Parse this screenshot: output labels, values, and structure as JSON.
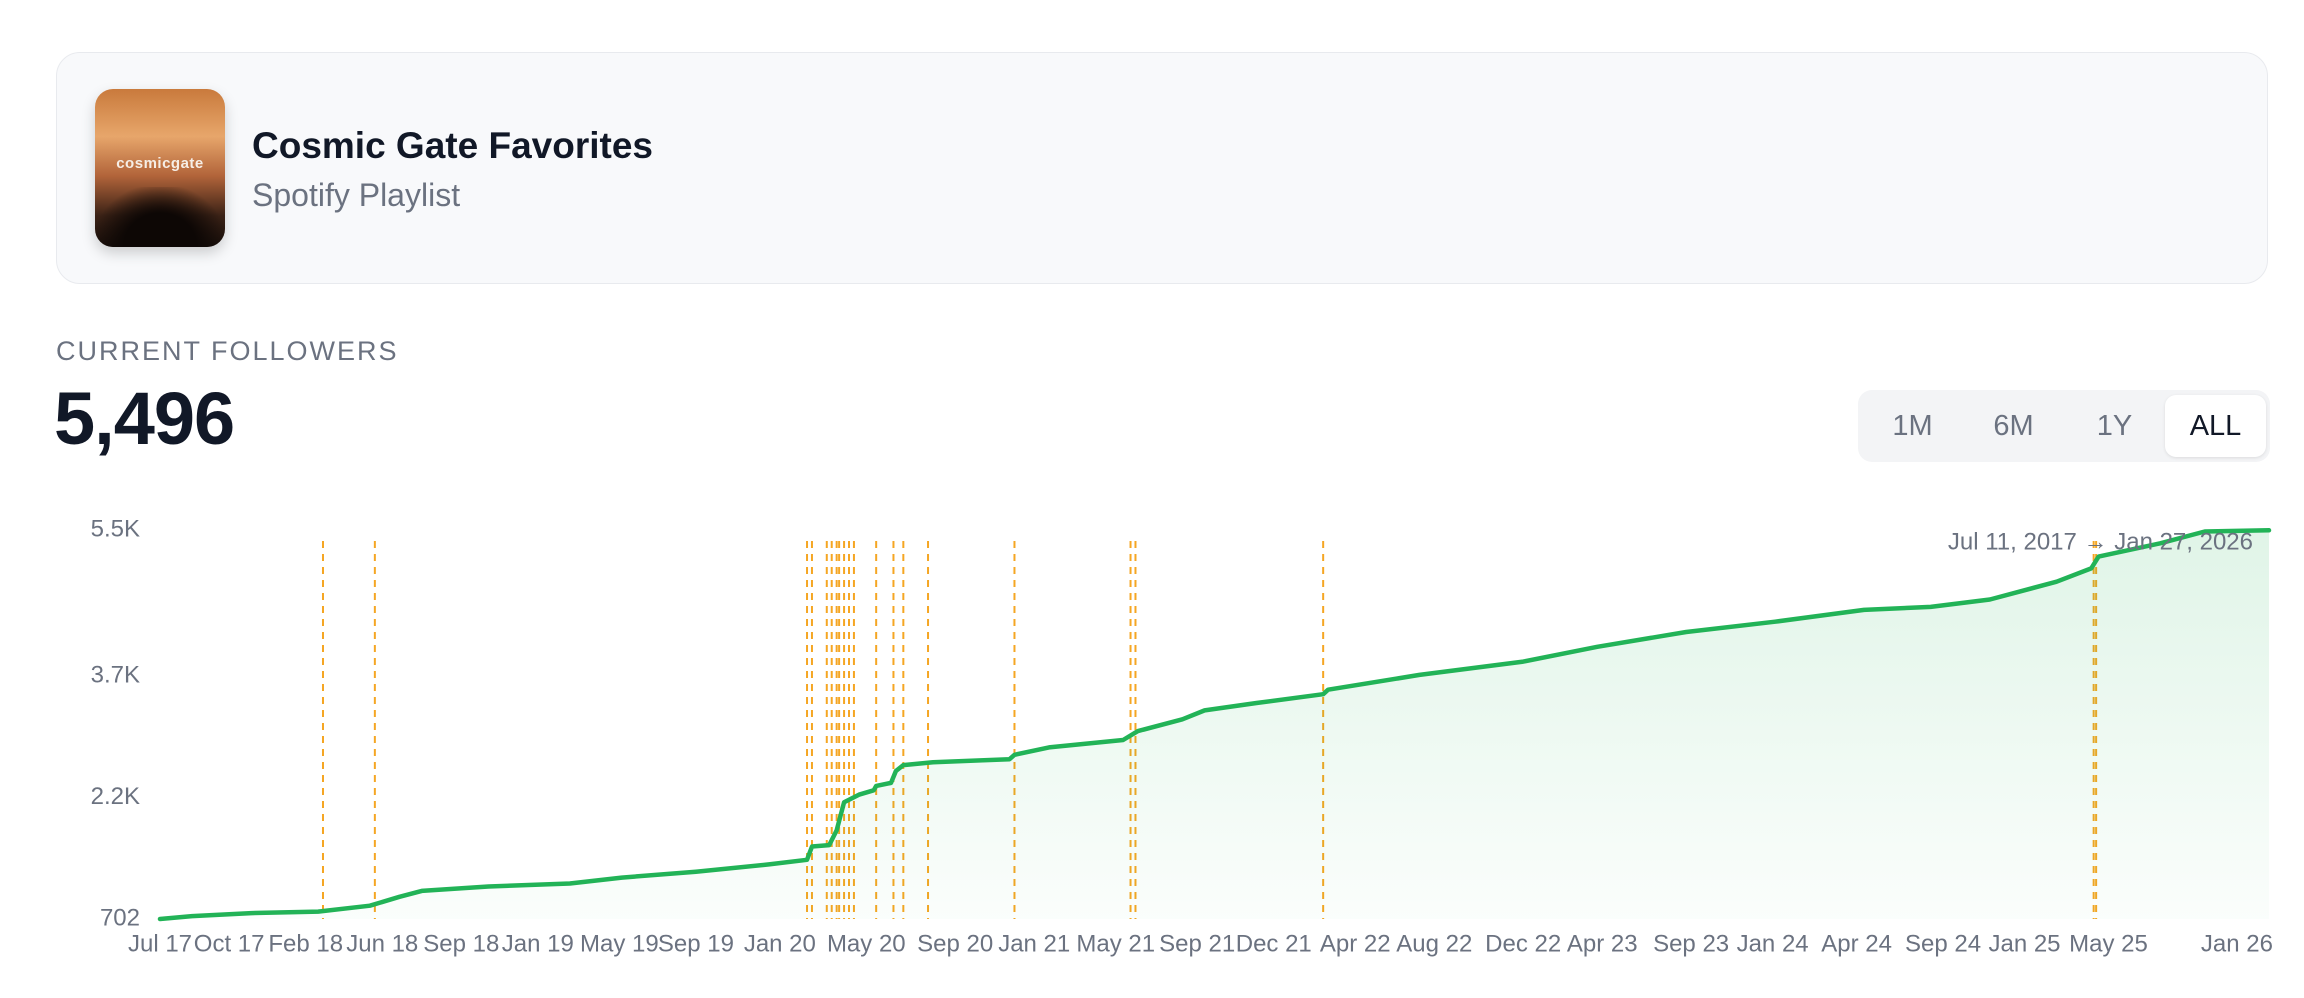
{
  "header": {
    "title": "Cosmic Gate Favorites",
    "subtitle": "Spotify Playlist",
    "cover_text": "cosmicgate"
  },
  "stats": {
    "label": "CURRENT FOLLOWERS",
    "value": "5,496"
  },
  "range_buttons": [
    "1M",
    "6M",
    "1Y",
    "ALL"
  ],
  "active_range": "ALL",
  "chart_data": {
    "type": "line",
    "annotation": "Jul 11, 2017 → Jan 27, 2026",
    "xlim": [
      2017.53,
      2026.07
    ],
    "ylim": [
      702,
      5500
    ],
    "yticks": [
      702,
      {
        "value": 2200,
        "label": "2.2K"
      },
      {
        "value": 3700,
        "label": "3.7K"
      },
      {
        "value": 5500,
        "label": "5.5K"
      }
    ],
    "xticks": [
      {
        "value": 2017.53,
        "label": "Jul 17"
      },
      {
        "value": 2017.81,
        "label": "Oct 17"
      },
      {
        "value": 2018.12,
        "label": "Feb 18"
      },
      {
        "value": 2018.43,
        "label": "Jun 18"
      },
      {
        "value": 2018.75,
        "label": "Sep 18"
      },
      {
        "value": 2019.06,
        "label": "Jan 19"
      },
      {
        "value": 2019.39,
        "label": "May 19"
      },
      {
        "value": 2019.7,
        "label": "Sep 19"
      },
      {
        "value": 2020.04,
        "label": "Jan 20"
      },
      {
        "value": 2020.39,
        "label": "May 20"
      },
      {
        "value": 2020.75,
        "label": "Sep 20"
      },
      {
        "value": 2021.07,
        "label": "Jan 21"
      },
      {
        "value": 2021.4,
        "label": "May 21"
      },
      {
        "value": 2021.73,
        "label": "Sep 21"
      },
      {
        "value": 2022.04,
        "label": "Dec 21"
      },
      {
        "value": 2022.37,
        "label": "Apr 22"
      },
      {
        "value": 2022.69,
        "label": "Aug 22"
      },
      {
        "value": 2023.05,
        "label": "Dec 22"
      },
      {
        "value": 2023.37,
        "label": "Apr 23"
      },
      {
        "value": 2023.73,
        "label": "Sep 23"
      },
      {
        "value": 2024.06,
        "label": "Jan 24"
      },
      {
        "value": 2024.4,
        "label": "Apr 24"
      },
      {
        "value": 2024.75,
        "label": "Sep 24"
      },
      {
        "value": 2025.08,
        "label": "Jan 25"
      },
      {
        "value": 2025.42,
        "label": "May 25"
      },
      {
        "value": 2025.94,
        "label": "Jan 26"
      }
    ],
    "event_color": "#f5a623",
    "events": [
      2018.19,
      2018.4,
      2020.15,
      2020.17,
      2020.23,
      2020.25,
      2020.27,
      2020.28,
      2020.3,
      2020.32,
      2020.34,
      2020.43,
      2020.5,
      2020.54,
      2020.64,
      2020.99,
      2021.46,
      2021.48,
      2022.24,
      2025.36,
      2025.37
    ],
    "series": [
      {
        "color": "#22b357",
        "x": [
          2017.53,
          2017.66,
          2017.9,
          2018.17,
          2018.38,
          2018.5,
          2018.59,
          2018.86,
          2019.19,
          2019.4,
          2019.7,
          2020.0,
          2020.15,
          2020.17,
          2020.24,
          2020.27,
          2020.3,
          2020.36,
          2020.42,
          2020.43,
          2020.49,
          2020.51,
          2020.54,
          2020.66,
          2020.97,
          2020.99,
          2021.13,
          2021.43,
          2021.49,
          2021.67,
          2021.76,
          2021.97,
          2022.24,
          2022.26,
          2022.63,
          2023.05,
          2023.35,
          2023.71,
          2024.07,
          2024.43,
          2024.7,
          2024.94,
          2025.21,
          2025.35,
          2025.38,
          2025.63,
          2025.81,
          2026.07
        ],
        "values": [
          702,
          738,
          775,
          793,
          866,
          976,
          1049,
          1103,
          1140,
          1213,
          1286,
          1377,
          1432,
          1596,
          1614,
          1797,
          2143,
          2235,
          2289,
          2344,
          2381,
          2527,
          2600,
          2636,
          2673,
          2727,
          2819,
          2910,
          3019,
          3165,
          3275,
          3366,
          3475,
          3530,
          3713,
          3877,
          4059,
          4242,
          4369,
          4515,
          4552,
          4643,
          4862,
          5026,
          5172,
          5336,
          5482,
          5496
        ]
      }
    ]
  }
}
